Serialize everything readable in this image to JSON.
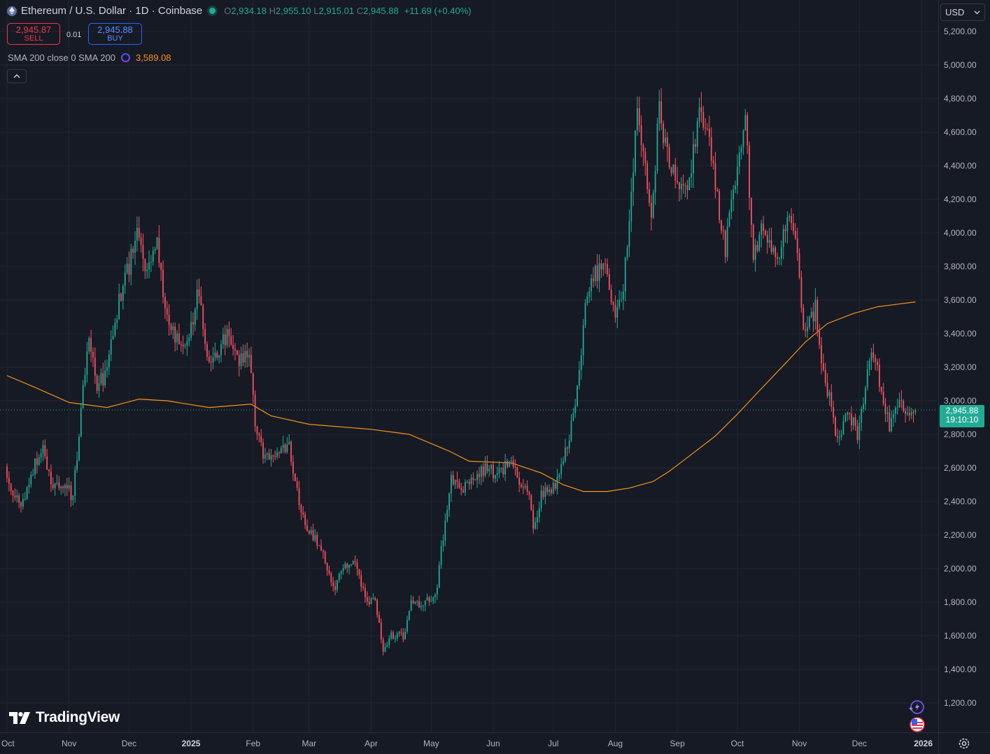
{
  "header": {
    "title": "Ethereum / U.S. Dollar · 1D · Coinbase",
    "ohlc": {
      "o_label": "O",
      "o": "2,934.18",
      "h_label": "H",
      "h": "2,955.10",
      "l_label": "L",
      "l": "2,915.01",
      "c_label": "C",
      "c": "2,945.88",
      "change": "+11.69 (+0.40%)"
    }
  },
  "trade": {
    "sell_price": "2,945.87",
    "sell_label": "SELL",
    "spread": "0.01",
    "buy_price": "2,945.88",
    "buy_label": "BUY"
  },
  "indicator": {
    "name": "SMA 200 close 0 SMA 200",
    "value": "3,589.08"
  },
  "currency": "USD",
  "last_price_badge": {
    "price": "2,945.88",
    "countdown": "19:10:10"
  },
  "brand": "TradingView",
  "colors": {
    "background": "#161a25",
    "up": "#22ab94",
    "down": "#f7525f",
    "sma": "#f7931a",
    "grid": "#222631",
    "text": "#b2b5be"
  },
  "icons": {
    "symbol": "ethereum-icon",
    "status": "market-status-dot",
    "collapse": "chevron-up-icon",
    "assistant": "sparkle-icon",
    "events": "us-flag-icon",
    "settings": "gear-icon"
  },
  "chart_data": {
    "type": "candlestick",
    "symbol": "ETHUSD",
    "interval": "1D",
    "y_ticks": [
      1200,
      1400,
      1600,
      1800,
      2000,
      2200,
      2400,
      2600,
      2800,
      3000,
      3200,
      3400,
      3600,
      3800,
      4000,
      4200,
      4400,
      4600,
      4800,
      5000,
      5200
    ],
    "y_tick_labels": [
      "1,200.00",
      "1,400.00",
      "1,600.00",
      "1,800.00",
      "2,000.00",
      "2,200.00",
      "2,400.00",
      "2,600.00",
      "2,800.00",
      "3,000.00",
      "3,200.00",
      "3,400.00",
      "3,600.00",
      "3,800.00",
      "4,000.00",
      "4,200.00",
      "4,400.00",
      "4,600.00",
      "4,800.00",
      "5,000.00",
      "5,200.00"
    ],
    "x_ticks": [
      {
        "label": "Oct",
        "date": "2024-10-01"
      },
      {
        "label": "Nov",
        "date": "2024-11-01"
      },
      {
        "label": "Dec",
        "date": "2024-12-01"
      },
      {
        "label": "2025",
        "date": "2025-01-01",
        "bold": true
      },
      {
        "label": "Feb",
        "date": "2025-02-01"
      },
      {
        "label": "Mar",
        "date": "2025-03-01"
      },
      {
        "label": "Apr",
        "date": "2025-04-01"
      },
      {
        "label": "May",
        "date": "2025-05-01"
      },
      {
        "label": "Jun",
        "date": "2025-06-01"
      },
      {
        "label": "Jul",
        "date": "2025-07-01"
      },
      {
        "label": "Aug",
        "date": "2025-08-01"
      },
      {
        "label": "Sep",
        "date": "2025-09-01"
      },
      {
        "label": "Oct",
        "date": "2025-10-01"
      },
      {
        "label": "Nov",
        "date": "2025-11-01"
      },
      {
        "label": "Dec",
        "date": "2025-12-01"
      },
      {
        "label": "2026",
        "date": "2026-01-01",
        "bold": true
      }
    ],
    "last_price": 2945.88,
    "close_path": [
      {
        "date": "2024-10-01",
        "close": 2610
      },
      {
        "date": "2024-10-05",
        "close": 2420
      },
      {
        "date": "2024-10-10",
        "close": 2380
      },
      {
        "date": "2024-10-15",
        "close": 2600
      },
      {
        "date": "2024-10-20",
        "close": 2700
      },
      {
        "date": "2024-10-25",
        "close": 2480
      },
      {
        "date": "2024-10-31",
        "close": 2510
      },
      {
        "date": "2024-11-04",
        "close": 2420
      },
      {
        "date": "2024-11-08",
        "close": 2950
      },
      {
        "date": "2024-11-12",
        "close": 3380
      },
      {
        "date": "2024-11-16",
        "close": 3100
      },
      {
        "date": "2024-11-20",
        "close": 3150
      },
      {
        "date": "2024-11-24",
        "close": 3380
      },
      {
        "date": "2024-11-28",
        "close": 3650
      },
      {
        "date": "2024-12-02",
        "close": 3800
      },
      {
        "date": "2024-12-06",
        "close": 4000
      },
      {
        "date": "2024-12-10",
        "close": 3750
      },
      {
        "date": "2024-12-16",
        "close": 4000
      },
      {
        "date": "2024-12-20",
        "close": 3500
      },
      {
        "date": "2024-12-26",
        "close": 3350
      },
      {
        "date": "2024-12-31",
        "close": 3330
      },
      {
        "date": "2025-01-06",
        "close": 3680
      },
      {
        "date": "2025-01-10",
        "close": 3260
      },
      {
        "date": "2025-01-16",
        "close": 3300
      },
      {
        "date": "2025-01-20",
        "close": 3400
      },
      {
        "date": "2025-01-26",
        "close": 3250
      },
      {
        "date": "2025-01-31",
        "close": 3300
      },
      {
        "date": "2025-02-03",
        "close": 2850
      },
      {
        "date": "2025-02-08",
        "close": 2650
      },
      {
        "date": "2025-02-14",
        "close": 2700
      },
      {
        "date": "2025-02-20",
        "close": 2750
      },
      {
        "date": "2025-02-24",
        "close": 2450
      },
      {
        "date": "2025-02-28",
        "close": 2250
      },
      {
        "date": "2025-03-04",
        "close": 2200
      },
      {
        "date": "2025-03-10",
        "close": 2050
      },
      {
        "date": "2025-03-14",
        "close": 1880
      },
      {
        "date": "2025-03-20",
        "close": 2000
      },
      {
        "date": "2025-03-24",
        "close": 2060
      },
      {
        "date": "2025-03-30",
        "close": 1820
      },
      {
        "date": "2025-04-04",
        "close": 1800
      },
      {
        "date": "2025-04-08",
        "close": 1520
      },
      {
        "date": "2025-04-12",
        "close": 1600
      },
      {
        "date": "2025-04-18",
        "close": 1600
      },
      {
        "date": "2025-04-22",
        "close": 1790
      },
      {
        "date": "2025-04-28",
        "close": 1800
      },
      {
        "date": "2025-05-04",
        "close": 1820
      },
      {
        "date": "2025-05-08",
        "close": 2200
      },
      {
        "date": "2025-05-12",
        "close": 2550
      },
      {
        "date": "2025-05-18",
        "close": 2480
      },
      {
        "date": "2025-05-24",
        "close": 2550
      },
      {
        "date": "2025-05-30",
        "close": 2600
      },
      {
        "date": "2025-06-04",
        "close": 2550
      },
      {
        "date": "2025-06-10",
        "close": 2650
      },
      {
        "date": "2025-06-14",
        "close": 2550
      },
      {
        "date": "2025-06-20",
        "close": 2450
      },
      {
        "date": "2025-06-22",
        "close": 2220
      },
      {
        "date": "2025-06-26",
        "close": 2450
      },
      {
        "date": "2025-07-01",
        "close": 2450
      },
      {
        "date": "2025-07-05",
        "close": 2550
      },
      {
        "date": "2025-07-10",
        "close": 2780
      },
      {
        "date": "2025-07-14",
        "close": 3050
      },
      {
        "date": "2025-07-18",
        "close": 3550
      },
      {
        "date": "2025-07-22",
        "close": 3750
      },
      {
        "date": "2025-07-28",
        "close": 3800
      },
      {
        "date": "2025-08-02",
        "close": 3450
      },
      {
        "date": "2025-08-06",
        "close": 3680
      },
      {
        "date": "2025-08-10",
        "close": 4200
      },
      {
        "date": "2025-08-13",
        "close": 4720
      },
      {
        "date": "2025-08-18",
        "close": 4300
      },
      {
        "date": "2025-08-20",
        "close": 4100
      },
      {
        "date": "2025-08-24",
        "close": 4750
      },
      {
        "date": "2025-08-28",
        "close": 4450
      },
      {
        "date": "2025-09-02",
        "close": 4300
      },
      {
        "date": "2025-09-08",
        "close": 4300
      },
      {
        "date": "2025-09-13",
        "close": 4700
      },
      {
        "date": "2025-09-18",
        "close": 4550
      },
      {
        "date": "2025-09-22",
        "close": 4200
      },
      {
        "date": "2025-09-26",
        "close": 3900
      },
      {
        "date": "2025-10-02",
        "close": 4400
      },
      {
        "date": "2025-10-06",
        "close": 4700
      },
      {
        "date": "2025-10-10",
        "close": 3800
      },
      {
        "date": "2025-10-14",
        "close": 4100
      },
      {
        "date": "2025-10-18",
        "close": 3900
      },
      {
        "date": "2025-10-22",
        "close": 3850
      },
      {
        "date": "2025-10-28",
        "close": 4100
      },
      {
        "date": "2025-11-01",
        "close": 3850
      },
      {
        "date": "2025-11-04",
        "close": 3400
      },
      {
        "date": "2025-11-10",
        "close": 3550
      },
      {
        "date": "2025-11-14",
        "close": 3150
      },
      {
        "date": "2025-11-18",
        "close": 3000
      },
      {
        "date": "2025-11-21",
        "close": 2750
      },
      {
        "date": "2025-11-26",
        "close": 2950
      },
      {
        "date": "2025-12-01",
        "close": 2800
      },
      {
        "date": "2025-12-05",
        "close": 3100
      },
      {
        "date": "2025-12-09",
        "close": 3300
      },
      {
        "date": "2025-12-13",
        "close": 3050
      },
      {
        "date": "2025-12-17",
        "close": 2850
      },
      {
        "date": "2025-12-21",
        "close": 2980
      },
      {
        "date": "2025-12-27",
        "close": 2934
      },
      {
        "date": "2025-12-29",
        "close": 2945.88
      }
    ],
    "sma200": [
      {
        "date": "2024-10-01",
        "value": 3150
      },
      {
        "date": "2024-10-15",
        "value": 3080
      },
      {
        "date": "2024-11-01",
        "value": 2990
      },
      {
        "date": "2024-11-20",
        "value": 2960
      },
      {
        "date": "2024-12-06",
        "value": 3010
      },
      {
        "date": "2024-12-20",
        "value": 3000
      },
      {
        "date": "2025-01-10",
        "value": 2960
      },
      {
        "date": "2025-01-31",
        "value": 2980
      },
      {
        "date": "2025-02-10",
        "value": 2910
      },
      {
        "date": "2025-03-01",
        "value": 2860
      },
      {
        "date": "2025-04-01",
        "value": 2830
      },
      {
        "date": "2025-04-20",
        "value": 2800
      },
      {
        "date": "2025-05-10",
        "value": 2700
      },
      {
        "date": "2025-05-20",
        "value": 2640
      },
      {
        "date": "2025-06-10",
        "value": 2630
      },
      {
        "date": "2025-06-25",
        "value": 2570
      },
      {
        "date": "2025-07-06",
        "value": 2500
      },
      {
        "date": "2025-07-16",
        "value": 2460
      },
      {
        "date": "2025-07-28",
        "value": 2460
      },
      {
        "date": "2025-08-08",
        "value": 2480
      },
      {
        "date": "2025-08-20",
        "value": 2520
      },
      {
        "date": "2025-08-28",
        "value": 2580
      },
      {
        "date": "2025-09-08",
        "value": 2680
      },
      {
        "date": "2025-09-20",
        "value": 2790
      },
      {
        "date": "2025-10-01",
        "value": 2920
      },
      {
        "date": "2025-10-12",
        "value": 3060
      },
      {
        "date": "2025-10-24",
        "value": 3210
      },
      {
        "date": "2025-11-04",
        "value": 3350
      },
      {
        "date": "2025-11-15",
        "value": 3460
      },
      {
        "date": "2025-11-28",
        "value": 3520
      },
      {
        "date": "2025-12-10",
        "value": 3560
      },
      {
        "date": "2025-12-29",
        "value": 3589.08
      }
    ]
  }
}
